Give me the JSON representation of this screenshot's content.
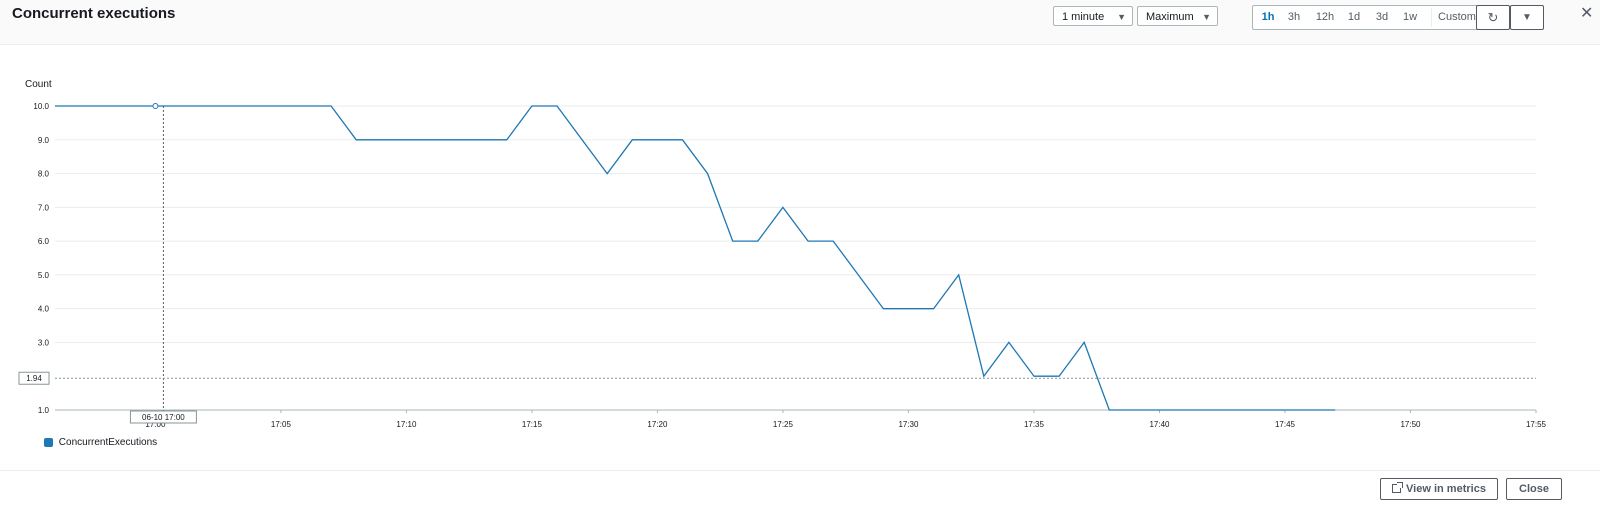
{
  "header": {
    "title": "Concurrent executions",
    "period_value": "1 minute",
    "stat_value": "Maximum",
    "time_ranges": [
      "1h",
      "3h",
      "12h",
      "1d",
      "3d",
      "1w"
    ],
    "active_range": "1h",
    "custom_label": "Custom"
  },
  "footer": {
    "view_in_metrics_label": "View in metrics",
    "close_label": "Close"
  },
  "colors": {
    "series": "#1f77b4",
    "active": "#0073bb"
  },
  "icons": [
    "caret-down-icon",
    "calendar-icon",
    "refresh-icon",
    "close-icon",
    "external-link-icon"
  ],
  "chart_data": {
    "type": "line",
    "title": "",
    "xlabel": "",
    "ylabel": "Count",
    "ylim": [
      1,
      10
    ],
    "xlim": [
      "17:00",
      "17:55"
    ],
    "yticks": [
      "10.0",
      "9.0",
      "8.0",
      "7.0",
      "6.0",
      "5.0",
      "4.0",
      "3.0",
      "1.0"
    ],
    "xticks": [
      "17:00",
      "17:05",
      "17:10",
      "17:15",
      "17:20",
      "17:25",
      "17:30",
      "17:35",
      "17:40",
      "17:45",
      "17:50",
      "17:55"
    ],
    "grid": true,
    "legend": "bottom-left",
    "series": [
      {
        "name": "ConcurrentExecutions",
        "x": [
          "16:56",
          "17:00",
          "17:07",
          "17:08",
          "17:14",
          "17:15",
          "17:16",
          "17:18",
          "17:19",
          "17:21",
          "17:22",
          "17:23",
          "17:24",
          "17:25",
          "17:26",
          "17:27",
          "17:28",
          "17:29",
          "17:30",
          "17:31",
          "17:32",
          "17:33",
          "17:34",
          "17:35",
          "17:36",
          "17:37",
          "17:38",
          "17:47"
        ],
        "values": [
          10,
          10,
          10,
          9,
          9,
          10,
          10,
          8,
          9,
          9,
          8,
          6,
          6,
          7,
          6,
          6,
          5,
          4,
          4,
          4,
          5,
          2,
          3,
          2,
          2,
          3,
          1,
          1
        ]
      }
    ],
    "crosshair": {
      "x_label": "06-10 17:00",
      "y_label": "1.94"
    }
  }
}
